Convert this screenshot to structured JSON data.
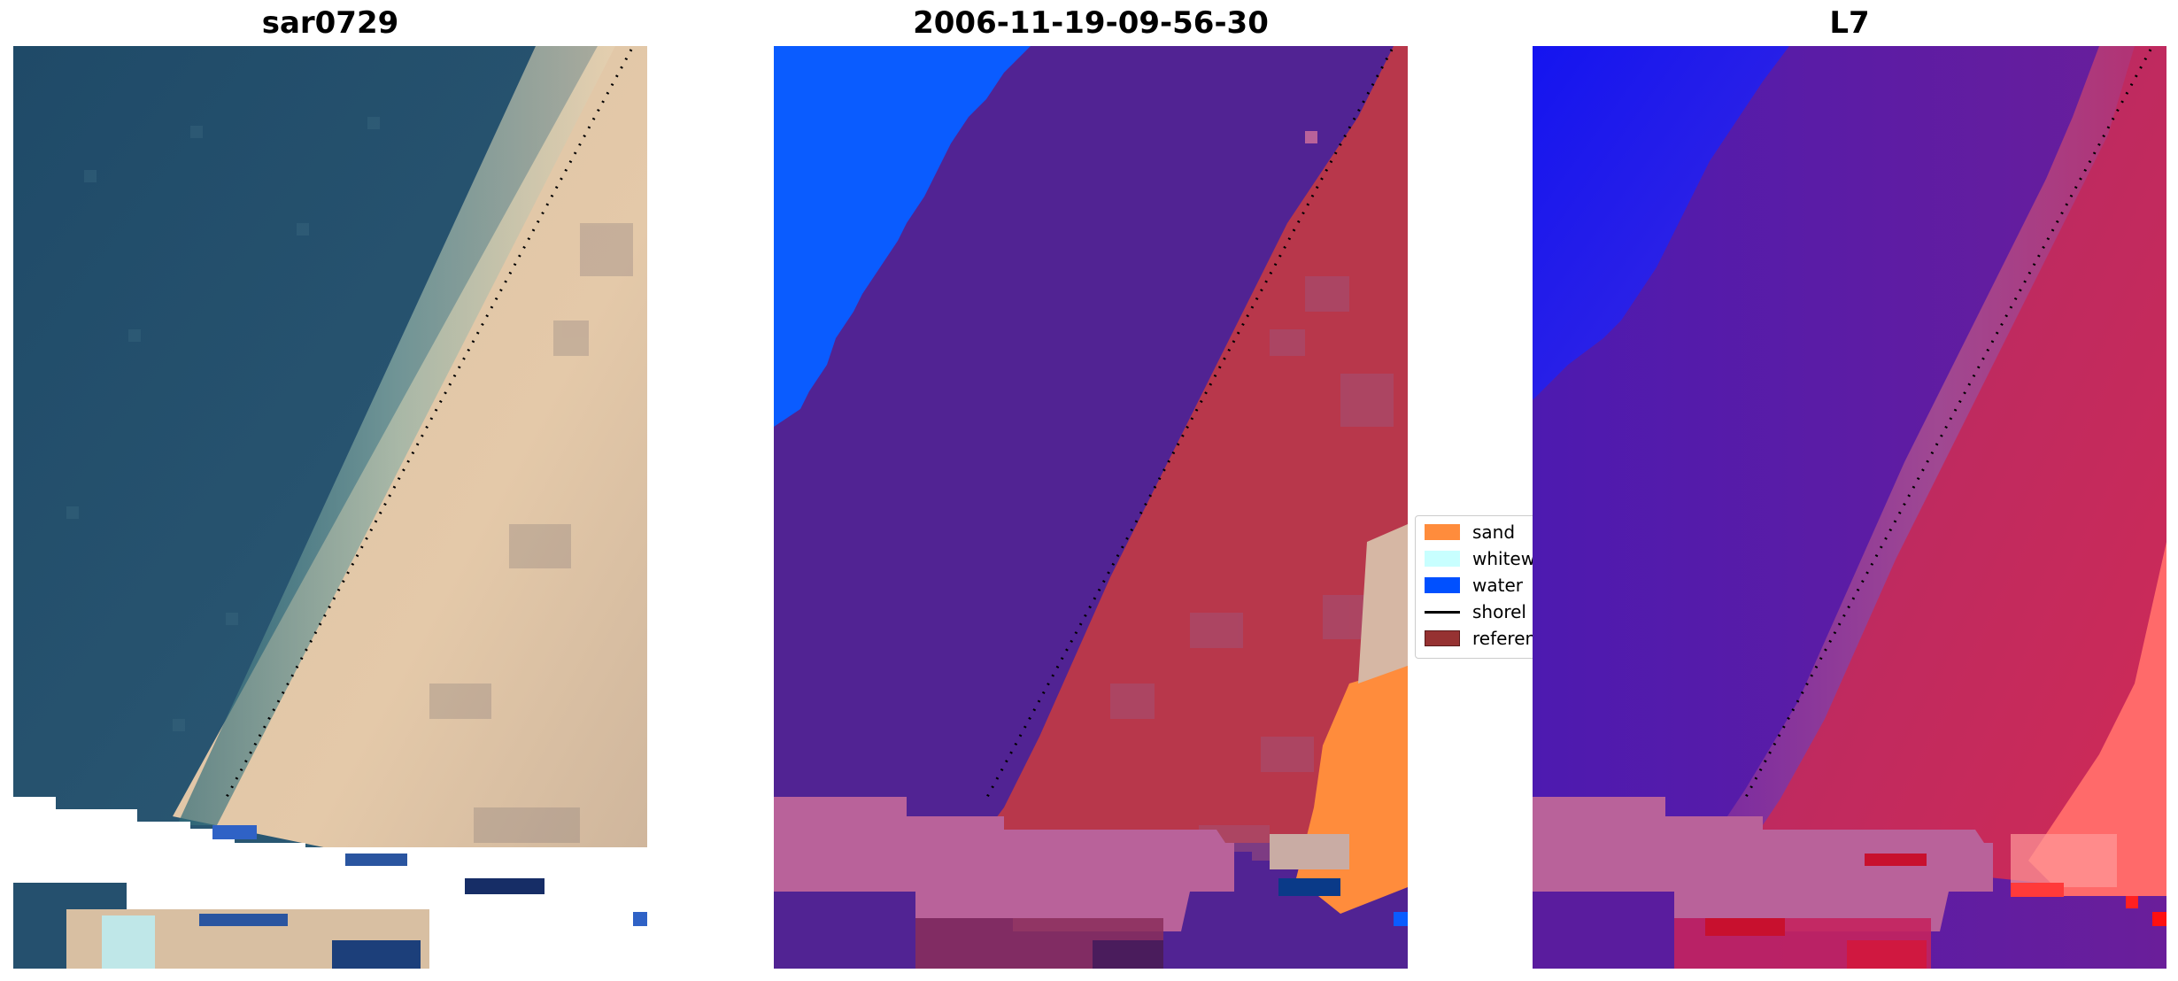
{
  "panels": [
    {
      "title": "sar0729"
    },
    {
      "title": "2006-11-19-09-56-30"
    },
    {
      "title": "L7"
    }
  ],
  "legend": {
    "items": [
      {
        "label": "sand",
        "color": "#ff8c3c"
      },
      {
        "label": "whitew",
        "color": "#c8ffff"
      },
      {
        "label": "water",
        "color": "#0050ff"
      },
      {
        "label": "shorel",
        "color": "#000000"
      },
      {
        "label": "referen",
        "color": "#963232"
      }
    ]
  },
  "colors": {
    "rgb_water": "#25506e",
    "rgb_sand": "#e2c7a7",
    "class_water": "#0a5cff",
    "class_other": "#512393",
    "class_land": "#b8374b",
    "class_reference": "#b9629a",
    "index_blue": "#1010ee",
    "index_purple": "#5a1c9e",
    "index_red": "#c8245a",
    "index_light_red": "#ff6a6a",
    "shoreline": "#000000"
  }
}
